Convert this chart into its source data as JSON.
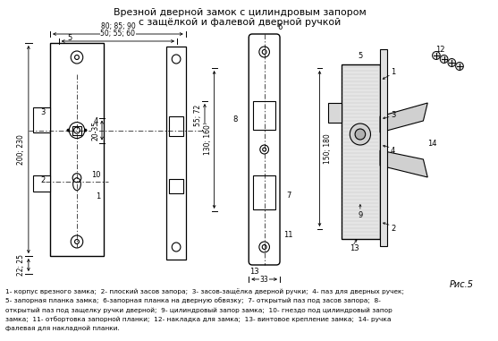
{
  "title_line1": "Врезной дверной замок с цилиндровым запором",
  "title_line2": "с защёлкой и фалевой дверной ручкой",
  "fig_label": "Рис.5",
  "background_color": "#ffffff",
  "text_color": "#000000",
  "caption_lines": [
    "1- корпус врезного замка;  2- плоский засов запора;  3- засов-защёлка дверной ручки;  4- паз для дверных ручек;",
    "5- запорная планка замка;  6-запорная планка на дверную обвязку;  7- открытый паз под засов запора;  8-",
    "открытый паз под защелку ручки дверной;  9- цилиндровый запор замка;  10- гнездо под цилиндровый запор",
    "замка;  11- отбортовка запорной планки;  12- накладка для замка;  13- винтовое крепление замка;  14- ручка",
    "фалевая для накладной планки."
  ],
  "dim_80_85_90": "80; 85; 90",
  "dim_50_55_60": "50; 55; 60",
  "dim_200_230": "200; 230",
  "dim_20_35": "20-35",
  "dim_22_25": "22; 25",
  "dim_55_72": "55; 72",
  "dim_130_160": "130; 160",
  "dim_150_180": "150; 180",
  "dim_33": "33"
}
